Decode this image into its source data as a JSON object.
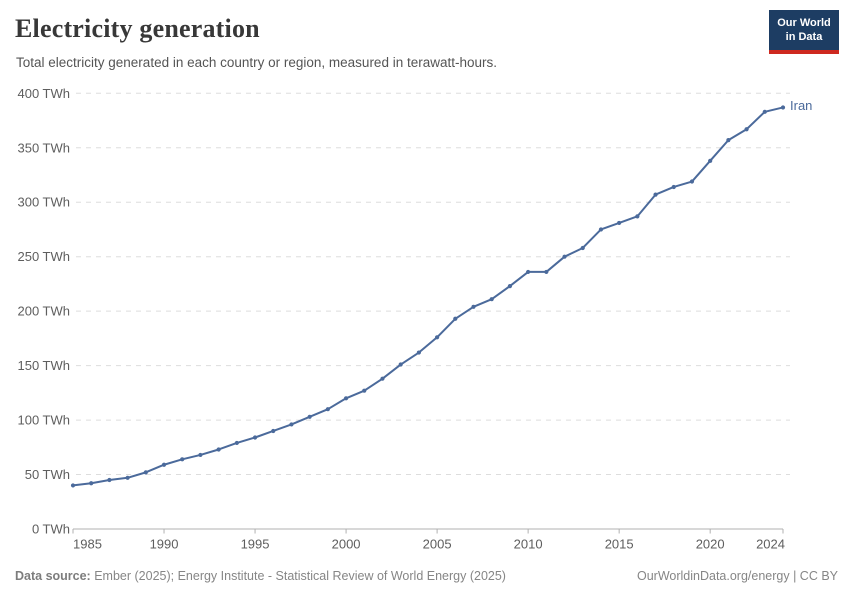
{
  "header": {
    "title": "Electricity generation",
    "subtitle": "Total electricity generated in each country or region, measured in terawatt-hours."
  },
  "logo": {
    "line1": "Our World",
    "line2": "in Data",
    "bg_color": "#1d3d63",
    "accent_color": "#ce2920"
  },
  "chart_data": {
    "type": "line",
    "title": "Electricity generation",
    "unit": "TWh",
    "entity": "Iran",
    "line_color": "#4b6a9b",
    "grid": true,
    "legend_position": "end-of-line",
    "xlim": [
      1985,
      2024
    ],
    "ylim": [
      0,
      400
    ],
    "x_ticks": [
      1985,
      1990,
      1995,
      2000,
      2005,
      2010,
      2015,
      2020,
      2024
    ],
    "y_ticks": [
      0,
      50,
      100,
      150,
      200,
      250,
      300,
      350,
      400
    ],
    "y_tick_suffix": " TWh",
    "x": [
      1985,
      1986,
      1987,
      1988,
      1989,
      1990,
      1991,
      1992,
      1993,
      1994,
      1995,
      1996,
      1997,
      1998,
      1999,
      2000,
      2001,
      2002,
      2003,
      2004,
      2005,
      2006,
      2007,
      2008,
      2009,
      2010,
      2011,
      2012,
      2013,
      2014,
      2015,
      2016,
      2017,
      2018,
      2019,
      2020,
      2021,
      2022,
      2023,
      2024
    ],
    "values": [
      40,
      42,
      45,
      47,
      52,
      59,
      64,
      68,
      73,
      79,
      84,
      90,
      96,
      103,
      110,
      120,
      127,
      138,
      151,
      162,
      176,
      193,
      204,
      211,
      223,
      236,
      236,
      250,
      258,
      275,
      281,
      287,
      307,
      314,
      319,
      338,
      357,
      367,
      383,
      387
    ]
  },
  "footer": {
    "source_label": "Data source:",
    "source_text": " Ember (2025); Energy Institute - Statistical Review of World Energy (2025)",
    "credit": "OurWorldinData.org/energy | CC BY"
  }
}
